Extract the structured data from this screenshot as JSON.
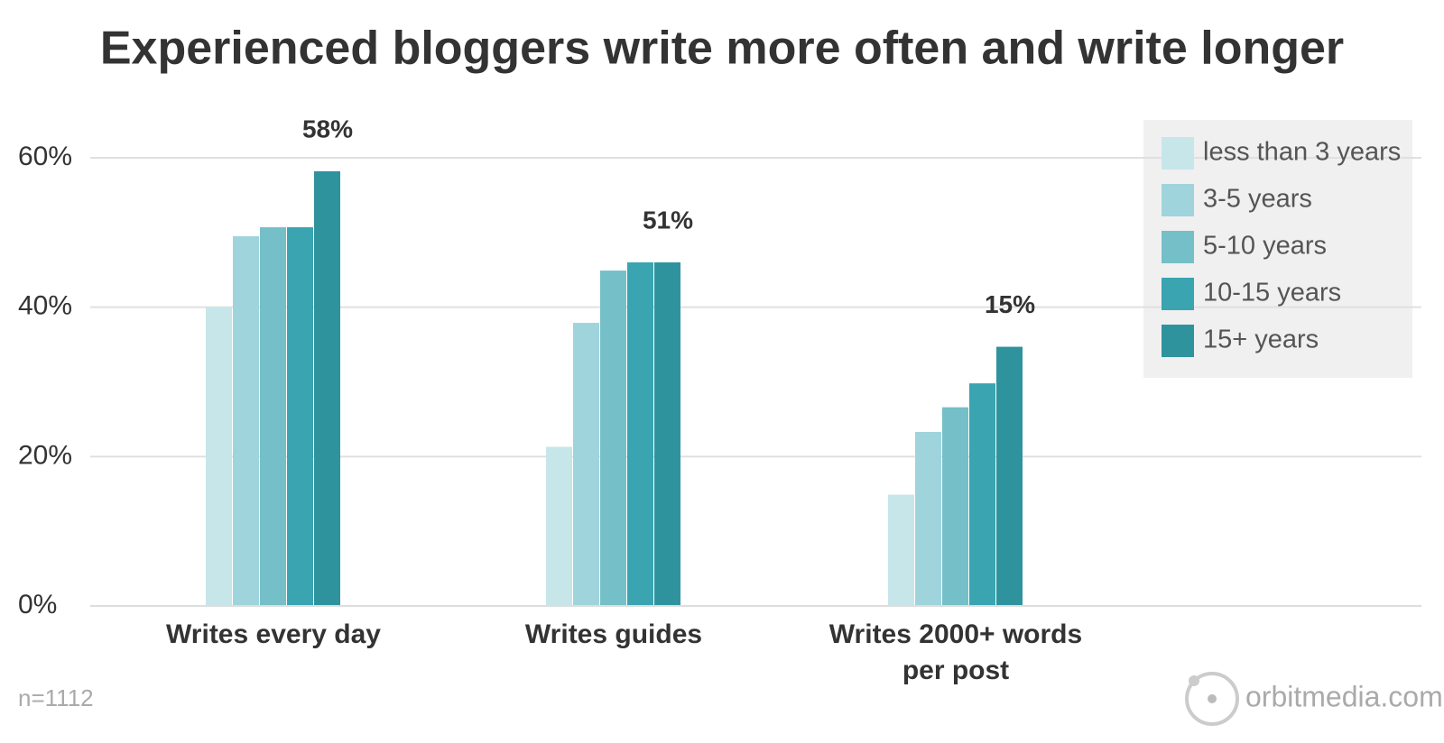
{
  "chart_data": {
    "type": "bar",
    "title": "Experienced bloggers write more often and write longer",
    "categories": [
      "Writes every day",
      "Writes guides",
      "Writes 2000+ words per post"
    ],
    "series": [
      {
        "name": "less than 3 years",
        "color": "#c6e6ea",
        "values": [
          40,
          21.3,
          14.9
        ]
      },
      {
        "name": "3-5 years",
        "color": "#9fd4dc",
        "values": [
          49.5,
          37.9,
          23.3
        ]
      },
      {
        "name": "5-10 years",
        "color": "#75bfc8",
        "values": [
          50.7,
          44.9,
          26.6
        ]
      },
      {
        "name": "10-15 years",
        "color": "#3aa4b1",
        "values": [
          50.7,
          46,
          29.8
        ]
      },
      {
        "name": "15+ years",
        "color": "#2f939e",
        "values": [
          58.2,
          46,
          34.7
        ]
      }
    ],
    "annotations": [
      "58%",
      "51%",
      "15%"
    ],
    "ylim": [
      0,
      60
    ],
    "yticks": [
      {
        "value": 0,
        "label": "0%"
      },
      {
        "value": 20,
        "label": "20%"
      },
      {
        "value": 40,
        "label": "40%"
      },
      {
        "value": 60,
        "label": "60%"
      }
    ],
    "grid": true,
    "legend": "top-right",
    "sample_note": "n=1112",
    "source": "orbitmedia.com"
  }
}
